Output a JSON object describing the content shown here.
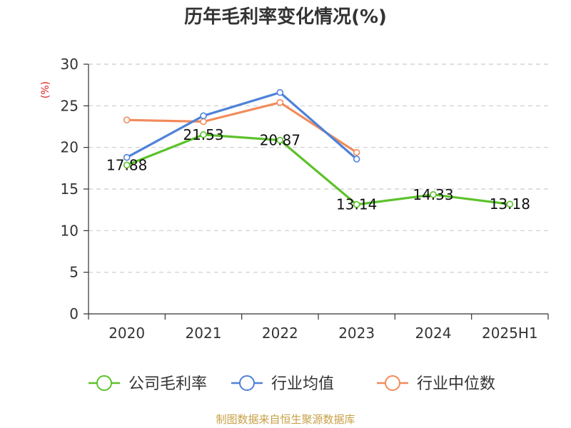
{
  "title": "历年毛利率变化情况(%)",
  "source": "制图数据来自恒生聚源数据库",
  "chart_data": {
    "type": "line",
    "title": "历年毛利率变化情况(%)",
    "ylabel": "(%)",
    "categories": [
      "2020",
      "2021",
      "2022",
      "2023",
      "2024",
      "2025H1"
    ],
    "ylim": [
      0,
      30
    ],
    "yticks": [
      0,
      5,
      10,
      15,
      20,
      25,
      30
    ],
    "grid": true,
    "legend_position": "bottom",
    "series": [
      {
        "name": "公司毛利率",
        "color": "#5cc22b",
        "values": [
          17.88,
          21.53,
          20.87,
          13.14,
          14.33,
          13.18
        ],
        "labels": [
          "17.88",
          "21.53",
          "20.87",
          "13.14",
          "14.33",
          "13.18"
        ]
      },
      {
        "name": "行业均值",
        "color": "#4e82d8",
        "values": [
          18.8,
          23.8,
          26.6,
          18.6,
          null,
          null
        ]
      },
      {
        "name": "行业中位数",
        "color": "#f28b5b",
        "values": [
          23.3,
          23.1,
          25.4,
          19.4,
          null,
          null
        ]
      }
    ]
  }
}
